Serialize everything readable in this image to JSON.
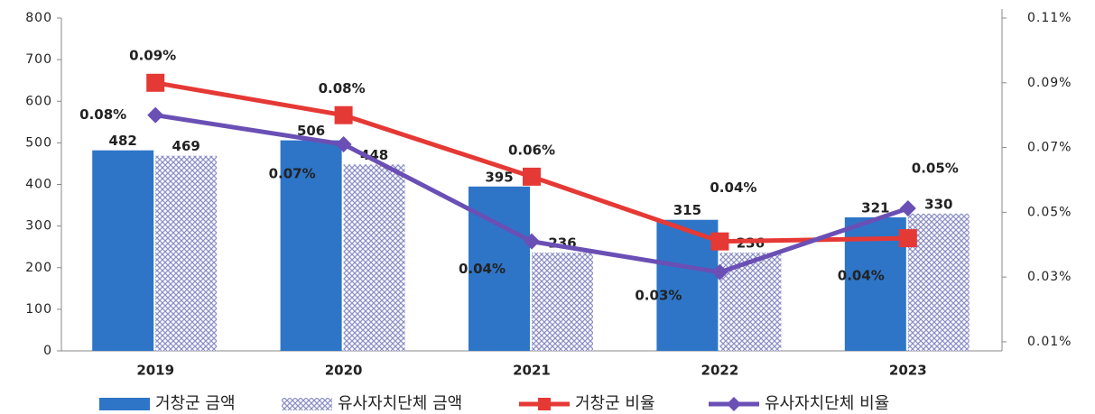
{
  "chart_data": {
    "type": "bar_line",
    "categories": [
      "2019",
      "2020",
      "2021",
      "2022",
      "2023"
    ],
    "series": [
      {
        "name": "거창군 금액",
        "type": "bar",
        "color": "#2e75c8",
        "values": [
          482,
          506,
          395,
          315,
          321
        ]
      },
      {
        "name": "유사자치단체 금액",
        "type": "bar",
        "pattern": "crosshatch",
        "color": "#8c8fc6",
        "values": [
          469,
          448,
          236,
          236,
          330
        ]
      },
      {
        "name": "거창군 비율",
        "type": "line",
        "axis": "y2",
        "color": "#e53935",
        "values": [
          0.09,
          0.08,
          0.061,
          0.041,
          0.042
        ],
        "value_labels": [
          "0.09%",
          "0.08%",
          "0.06%",
          "0.04%",
          "0.04%"
        ]
      },
      {
        "name": "유사자치단체 비율",
        "type": "line",
        "axis": "y2",
        "color": "#6a4fb5",
        "values": [
          0.08,
          0.071,
          0.041,
          0.0315,
          0.0512
        ],
        "value_labels": [
          "0.08%",
          "0.07%",
          "0.04%",
          "0.03%",
          "0.05%"
        ]
      }
    ],
    "ylim": [
      0,
      800
    ],
    "yticks": [
      0,
      100,
      200,
      300,
      400,
      500,
      600,
      700,
      800
    ],
    "y2lim": [
      0.0072,
      0.11
    ],
    "y2ticks": [
      {
        "value": 0.01,
        "label": "0.01%"
      },
      {
        "value": 0.03,
        "label": "0.03%"
      },
      {
        "value": 0.05,
        "label": "0.05%"
      },
      {
        "value": 0.07,
        "label": "0.07%"
      },
      {
        "value": 0.09,
        "label": "0.09%"
      },
      {
        "value": 0.11,
        "label": "0.11%"
      }
    ],
    "legend": "bottom"
  }
}
